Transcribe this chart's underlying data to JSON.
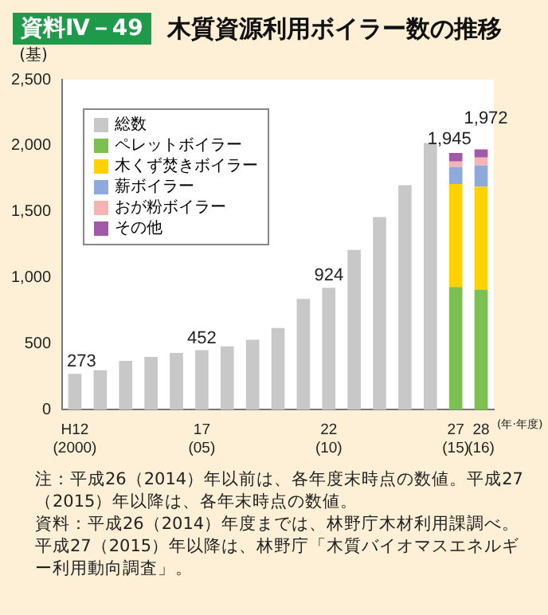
{
  "chart_data": {
    "type": "bar",
    "title": "木質資源利用ボイラー数の推移",
    "subtitle": "資料Ⅳ－49",
    "ylabel": "(基)",
    "xlabel": "(年·年度)",
    "categories": [
      "H12\n(2000)",
      null,
      null,
      null,
      null,
      "17\n(05)",
      null,
      null,
      null,
      null,
      "22\n(10)",
      null,
      null,
      null,
      null,
      "27\n(15)",
      "28\n(16)"
    ],
    "stacked": true,
    "series": [
      {
        "name": "総数",
        "color": "#c8c8c8",
        "values": [
          273,
          300,
          370,
          400,
          430,
          452,
          480,
          530,
          620,
          840,
          924,
          1210,
          1460,
          1700,
          2020,
          null,
          null
        ],
        "value_labels": [
          "273",
          null,
          null,
          null,
          null,
          "452",
          null,
          null,
          null,
          null,
          "924",
          null,
          null,
          null,
          null,
          null,
          null
        ]
      },
      {
        "name": "ペレットボイラー",
        "color": "#7dc052",
        "values": [
          null,
          null,
          null,
          null,
          null,
          null,
          null,
          null,
          null,
          null,
          null,
          null,
          null,
          null,
          null,
          930,
          910
        ]
      },
      {
        "name": "木くず焚きボイラー",
        "color": "#ffd200",
        "values": [
          null,
          null,
          null,
          null,
          null,
          null,
          null,
          null,
          null,
          null,
          null,
          null,
          null,
          null,
          null,
          780,
          780
        ]
      },
      {
        "name": "薪ボイラー",
        "color": "#8ea9db",
        "values": [
          null,
          null,
          null,
          null,
          null,
          null,
          null,
          null,
          null,
          null,
          null,
          null,
          null,
          null,
          null,
          130,
          160
        ]
      },
      {
        "name": "おが粉ボイラー",
        "color": "#f4b4b4",
        "values": [
          null,
          null,
          null,
          null,
          null,
          null,
          null,
          null,
          null,
          null,
          null,
          null,
          null,
          null,
          null,
          40,
          60
        ]
      },
      {
        "name": "その他",
        "color": "#a05aa8",
        "values": [
          null,
          null,
          null,
          null,
          null,
          null,
          null,
          null,
          null,
          null,
          null,
          null,
          null,
          null,
          null,
          65,
          62
        ]
      }
    ],
    "totals": [
      null,
      null,
      null,
      null,
      null,
      null,
      null,
      null,
      null,
      null,
      null,
      null,
      null,
      null,
      null,
      "1,945",
      "1,972"
    ],
    "ylim": [
      0,
      2500
    ],
    "yticks": [
      0,
      {
        "value": 500,
        "label": "500"
      },
      {
        "value": 1000,
        "label": "1,000"
      },
      {
        "value": 1500,
        "label": "1,500"
      },
      {
        "value": 2000,
        "label": "2,000"
      },
      {
        "value": 2500,
        "label": "2,500"
      }
    ],
    "grid": false,
    "legend": "top left",
    "annotations": [
      "注：平成26（2014）年以前は、各年度末時点の数値。平成27（2015）年以降は、各年末時点の数値。",
      "資料：平成26（2014）年度までは、林野庁木材利用課調べ。平成27（2015）年以降は、林野庁「木質バイオマスエネルギー利用動向調査」。"
    ]
  }
}
